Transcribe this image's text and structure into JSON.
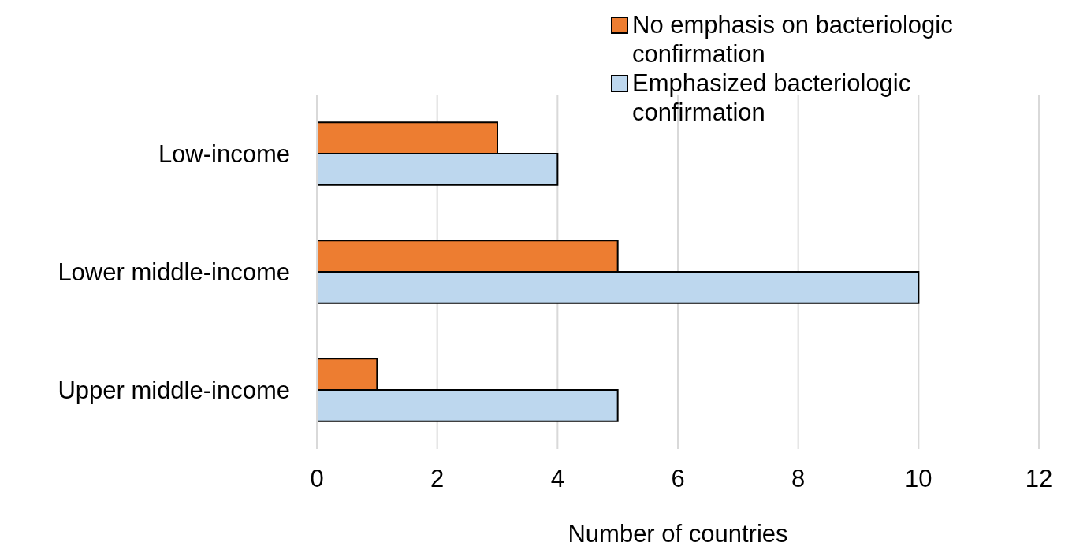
{
  "chart_data": {
    "type": "bar",
    "orientation": "horizontal",
    "xlabel": "Number of countries",
    "categories": [
      "Low-income",
      "Lower middle-income",
      "Upper middle-income"
    ],
    "series": [
      {
        "name": "No emphasis on bacteriologic confirmation",
        "color": "#ed7d31",
        "values": [
          3,
          5,
          1
        ]
      },
      {
        "name": "Emphasized bacteriologic confirmation",
        "color": "#bdd7ee",
        "values": [
          4,
          10,
          5
        ]
      }
    ],
    "xlim": [
      0,
      12
    ],
    "xticks": [
      0,
      2,
      4,
      6,
      8,
      10,
      12
    ],
    "grid": "x",
    "legend": "top right"
  }
}
